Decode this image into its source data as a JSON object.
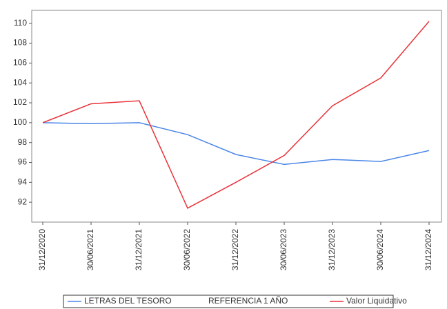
{
  "chart_data": {
    "type": "line",
    "categories": [
      "31/12/2020",
      "30/06/2021",
      "31/12/2021",
      "30/06/2022",
      "31/12/2022",
      "30/06/2023",
      "31/12/2023",
      "30/06/2024",
      "31/12/2024"
    ],
    "series": [
      {
        "name": "LETRAS DEL TESORO",
        "color": "#4a86e8",
        "values": [
          100,
          99.9,
          100,
          98.8,
          96.8,
          95.8,
          96.3,
          96.1,
          97.2
        ]
      },
      {
        "name": "REFERENCIA 1 AÑO",
        "color": "#ffffff",
        "values": [
          null,
          null,
          null,
          null,
          null,
          null,
          null,
          null,
          null
        ]
      },
      {
        "name": "Valor Liquidativo",
        "color": "#e8333a",
        "values": [
          100,
          101.9,
          102.2,
          91.4,
          94,
          96.7,
          101.7,
          104.5,
          110.2
        ]
      }
    ],
    "ylim": [
      90,
      111.3
    ],
    "yticks": [
      92,
      94,
      96,
      98,
      100,
      102,
      104,
      106,
      108,
      110
    ],
    "legend": "bottom"
  }
}
